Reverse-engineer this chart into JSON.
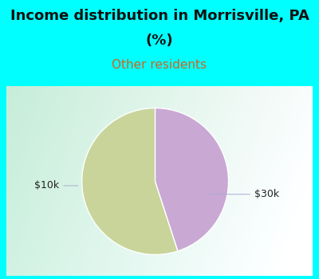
{
  "title_line1": "Income distribution in Morrisville, PA",
  "title_line2": "(%)",
  "subtitle": "Other residents",
  "title_color": "#111111",
  "subtitle_color": "#cc6622",
  "background_color": "#00ffff",
  "chart_bg_left": "#c8edd8",
  "chart_bg_right": "#f0f8f0",
  "slices": [
    {
      "label": "$10k",
      "value": 55,
      "color": "#c8d49a"
    },
    {
      "label": "$30k",
      "value": 45,
      "color": "#c9a8d4"
    }
  ],
  "title_fontsize": 13,
  "subtitle_fontsize": 11,
  "label_fontsize": 9,
  "startangle": 90
}
